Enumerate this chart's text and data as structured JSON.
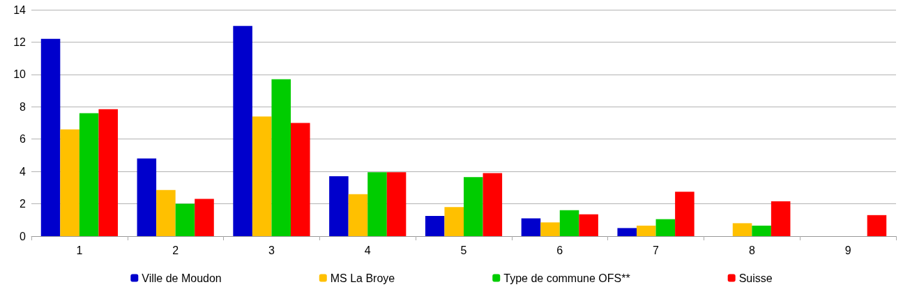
{
  "chart_data": {
    "type": "bar",
    "categories": [
      "1",
      "2",
      "3",
      "4",
      "5",
      "6",
      "7",
      "8",
      "9"
    ],
    "series": [
      {
        "name": "Ville de Moudon",
        "color": "#0000cc",
        "values": [
          12.2,
          4.8,
          13.0,
          3.7,
          1.25,
          1.1,
          0.5,
          null,
          null
        ]
      },
      {
        "name": "MS La Broye",
        "color": "#ffc000",
        "values": [
          6.6,
          2.85,
          7.4,
          2.6,
          1.8,
          0.85,
          0.65,
          0.8,
          null
        ]
      },
      {
        "name": "Type de commune OFS**",
        "color": "#00cc00",
        "values": [
          7.6,
          2.0,
          9.7,
          3.95,
          3.65,
          1.6,
          1.05,
          0.65,
          null
        ]
      },
      {
        "name": "Suisse",
        "color": "#ff0000",
        "values": [
          7.85,
          2.3,
          7.0,
          3.95,
          3.9,
          1.35,
          2.75,
          2.15,
          1.3
        ]
      }
    ],
    "ylim": [
      0,
      14
    ],
    "yticks": [
      0,
      2,
      4,
      6,
      8,
      10,
      12,
      14
    ],
    "grid": "y",
    "legend": "bottom"
  }
}
